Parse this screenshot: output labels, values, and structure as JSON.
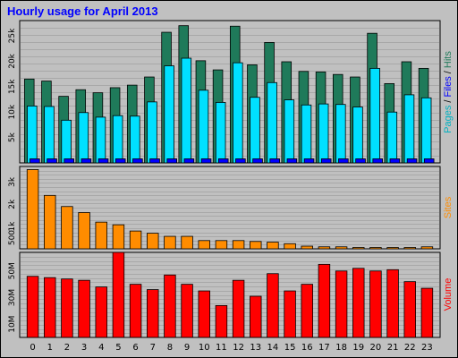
{
  "title": "Hourly usage for April 2013",
  "chart_data": [
    {
      "type": "bar",
      "name": "hits-files-pages-panel",
      "categories": [
        "0",
        "1",
        "2",
        "3",
        "4",
        "5",
        "6",
        "7",
        "8",
        "9",
        "10",
        "11",
        "12",
        "13",
        "14",
        "15",
        "16",
        "17",
        "18",
        "19",
        "20",
        "21",
        "22",
        "23"
      ],
      "ylim": [
        0,
        2800
      ],
      "yticks": [
        {
          "value": 500,
          "label": "5k"
        },
        {
          "value": 1000,
          "label": "10k"
        },
        {
          "value": 1500,
          "label": "15k"
        },
        {
          "value": 2000,
          "label": "20k"
        },
        {
          "value": 2500,
          "label": "25k"
        }
      ],
      "series": [
        {
          "name": "Hits",
          "color": "#1f7a5a",
          "values": [
            1650,
            1610,
            1310,
            1440,
            1380,
            1480,
            1530,
            1690,
            2570,
            2700,
            2010,
            1830,
            2690,
            1930,
            2370,
            1990,
            1800,
            1790,
            1740,
            1690,
            2550,
            1560,
            1990,
            1860
          ]
        },
        {
          "name": "Files",
          "color": "#00e0ff",
          "values": [
            1120,
            1110,
            840,
            990,
            900,
            930,
            920,
            1200,
            1910,
            2060,
            1430,
            1190,
            1970,
            1290,
            1580,
            1240,
            1140,
            1160,
            1150,
            1100,
            1860,
            1000,
            1340,
            1280
          ]
        },
        {
          "name": "Pages",
          "color": "#0000ff",
          "values": [
            80,
            80,
            80,
            80,
            80,
            80,
            80,
            80,
            80,
            80,
            80,
            80,
            80,
            80,
            80,
            80,
            80,
            80,
            80,
            80,
            80,
            80,
            80,
            80
          ]
        }
      ],
      "side_label": [
        {
          "text": "Pages",
          "color": "#00b0c0"
        },
        {
          "text": " / ",
          "color": "#000000"
        },
        {
          "text": "Files",
          "color": "#0000ff"
        },
        {
          "text": " / ",
          "color": "#000000"
        },
        {
          "text": "Hits",
          "color": "#1f7a5a"
        }
      ]
    },
    {
      "type": "bar",
      "name": "sites-panel",
      "categories": [
        "0",
        "1",
        "2",
        "3",
        "4",
        "5",
        "6",
        "7",
        "8",
        "9",
        "10",
        "11",
        "12",
        "13",
        "14",
        "15",
        "16",
        "17",
        "18",
        "19",
        "20",
        "21",
        "22",
        "23"
      ],
      "ylim": [
        0,
        3700
      ],
      "yticks": [
        {
          "value": 500,
          "label": "500"
        },
        {
          "value": 1000,
          "label": "1k"
        },
        {
          "value": 2000,
          "label": "2k"
        },
        {
          "value": 3000,
          "label": "3k"
        }
      ],
      "series": [
        {
          "name": "Sites",
          "color": "#ff8c00",
          "values": [
            3560,
            2400,
            1900,
            1630,
            1200,
            1080,
            800,
            700,
            560,
            560,
            370,
            370,
            370,
            330,
            300,
            230,
            120,
            90,
            90,
            60,
            60,
            60,
            60,
            90
          ]
        }
      ],
      "side_label": [
        {
          "text": "Sites",
          "color": "#ff8c00"
        }
      ]
    },
    {
      "type": "bar",
      "name": "volume-panel",
      "categories": [
        "0",
        "1",
        "2",
        "3",
        "4",
        "5",
        "6",
        "7",
        "8",
        "9",
        "10",
        "11",
        "12",
        "13",
        "14",
        "15",
        "16",
        "17",
        "18",
        "19",
        "20",
        "21",
        "22",
        "23"
      ],
      "ylim": [
        0,
        64
      ],
      "yticks": [
        {
          "value": 10,
          "label": "10M"
        },
        {
          "value": 30,
          "label": "30M"
        },
        {
          "value": 50,
          "label": "50M"
        }
      ],
      "series": [
        {
          "name": "Volume",
          "color": "#ff0000",
          "values": [
            46,
            45,
            44,
            43,
            38,
            64,
            40,
            36,
            47,
            40,
            35,
            24,
            43,
            31,
            48,
            35,
            40,
            55,
            50,
            52,
            50,
            51,
            42,
            37
          ]
        }
      ],
      "side_label": [
        {
          "text": "Volume",
          "color": "#ff0000"
        }
      ]
    }
  ]
}
